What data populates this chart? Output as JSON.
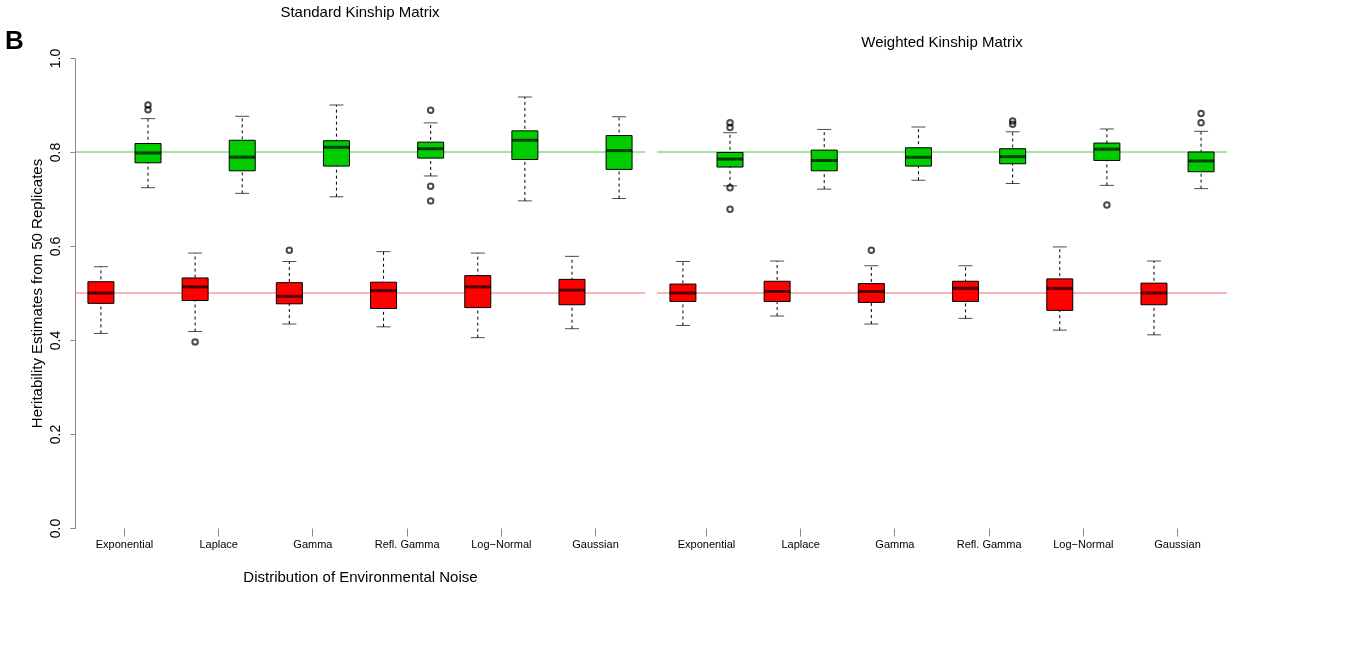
{
  "chart_data": [
    {
      "type": "box",
      "title": "Standard Kinship Matrix",
      "ylabel": "Heritability Estimates from 50 Replicates",
      "xlabel": "Distribution of Environmental Noise",
      "annotations": [
        "B"
      ],
      "categories": [
        "Exponential",
        "Laplace",
        "Gamma",
        "Refl. Gamma",
        "Log−Normal",
        "Gaussian"
      ],
      "ylim": [
        0,
        1
      ],
      "yticks": [
        {
          "value": 0,
          "label": "0.0"
        },
        {
          "value": 0.2,
          "label": "0.2"
        },
        {
          "value": 0.4,
          "label": "0.4"
        },
        {
          "value": 0.6,
          "label": "0.6"
        },
        {
          "value": 0.8,
          "label": "0.8"
        },
        {
          "value": 1,
          "label": "1.0"
        }
      ],
      "grid": false,
      "ref_lines": [
        {
          "axis": "y",
          "value": 0.5,
          "color": "#ff6666"
        },
        {
          "axis": "y",
          "value": 0.8,
          "color": "#44cc44"
        }
      ],
      "series": [
        {
          "color": "#ff0000",
          "boxes": [
            {
              "low": 0.414,
              "q1": 0.478,
              "median": 0.5,
              "q3": 0.524,
              "high": 0.556
            },
            {
              "low": 0.418,
              "q1": 0.484,
              "median": 0.513,
              "q3": 0.532,
              "high": 0.585,
              "outliers": [
                0.396
              ]
            },
            {
              "low": 0.434,
              "q1": 0.477,
              "median": 0.493,
              "q3": 0.522,
              "high": 0.567,
              "outliers": [
                0.591
              ]
            },
            {
              "low": 0.428,
              "q1": 0.467,
              "median": 0.505,
              "q3": 0.523,
              "high": 0.588
            },
            {
              "low": 0.405,
              "q1": 0.469,
              "median": 0.513,
              "q3": 0.537,
              "high": 0.585
            },
            {
              "low": 0.424,
              "q1": 0.475,
              "median": 0.506,
              "q3": 0.529,
              "high": 0.578
            }
          ]
        },
        {
          "color": "#00cc00",
          "boxes": [
            {
              "low": 0.724,
              "q1": 0.777,
              "median": 0.798,
              "q3": 0.818,
              "high": 0.871,
              "outliers": [
                0.9,
                0.89
              ]
            },
            {
              "low": 0.712,
              "q1": 0.76,
              "median": 0.789,
              "q3": 0.825,
              "high": 0.876
            },
            {
              "low": 0.705,
              "q1": 0.77,
              "median": 0.81,
              "q3": 0.824,
              "high": 0.9
            },
            {
              "low": 0.749,
              "q1": 0.787,
              "median": 0.807,
              "q3": 0.821,
              "high": 0.862,
              "outliers": [
                0.889,
                0.727,
                0.696
              ]
            },
            {
              "low": 0.696,
              "q1": 0.784,
              "median": 0.825,
              "q3": 0.845,
              "high": 0.917
            },
            {
              "low": 0.701,
              "q1": 0.763,
              "median": 0.803,
              "q3": 0.835,
              "high": 0.875
            }
          ]
        }
      ]
    },
    {
      "type": "box",
      "title": "Weighted Kinship Matrix",
      "categories": [
        "Exponential",
        "Laplace",
        "Gamma",
        "Refl. Gamma",
        "Log−Normal",
        "Gaussian"
      ],
      "ylim": [
        0,
        1
      ],
      "tick_labels": "x",
      "grid": false,
      "ref_lines": [
        {
          "axis": "y",
          "value": 0.5,
          "color": "#ff6666"
        },
        {
          "axis": "y",
          "value": 0.8,
          "color": "#44cc44"
        }
      ],
      "series": [
        {
          "color": "#ff0000",
          "boxes": [
            {
              "low": 0.431,
              "q1": 0.482,
              "median": 0.5,
              "q3": 0.519,
              "high": 0.567
            },
            {
              "low": 0.451,
              "q1": 0.482,
              "median": 0.503,
              "q3": 0.525,
              "high": 0.568
            },
            {
              "low": 0.434,
              "q1": 0.48,
              "median": 0.503,
              "q3": 0.52,
              "high": 0.558,
              "outliers": [
                0.591
              ]
            },
            {
              "low": 0.446,
              "q1": 0.482,
              "median": 0.51,
              "q3": 0.525,
              "high": 0.558
            },
            {
              "low": 0.421,
              "q1": 0.463,
              "median": 0.51,
              "q3": 0.53,
              "high": 0.598
            },
            {
              "low": 0.411,
              "q1": 0.475,
              "median": 0.5,
              "q3": 0.521,
              "high": 0.568
            }
          ]
        },
        {
          "color": "#00cc00",
          "boxes": [
            {
              "low": 0.728,
              "q1": 0.768,
              "median": 0.785,
              "q3": 0.799,
              "high": 0.841,
              "outliers": [
                0.862,
                0.852,
                0.724,
                0.678
              ]
            },
            {
              "low": 0.721,
              "q1": 0.76,
              "median": 0.782,
              "q3": 0.804,
              "high": 0.848
            },
            {
              "low": 0.74,
              "q1": 0.77,
              "median": 0.789,
              "q3": 0.809,
              "high": 0.853
            },
            {
              "low": 0.733,
              "q1": 0.775,
              "median": 0.79,
              "q3": 0.807,
              "high": 0.843,
              "outliers": [
                0.866,
                0.859
              ]
            },
            {
              "low": 0.729,
              "q1": 0.782,
              "median": 0.806,
              "q3": 0.819,
              "high": 0.849,
              "outliers": [
                0.687
              ]
            },
            {
              "low": 0.722,
              "q1": 0.758,
              "median": 0.781,
              "q3": 0.8,
              "high": 0.844,
              "outliers": [
                0.882,
                0.862
              ]
            }
          ]
        }
      ]
    }
  ]
}
